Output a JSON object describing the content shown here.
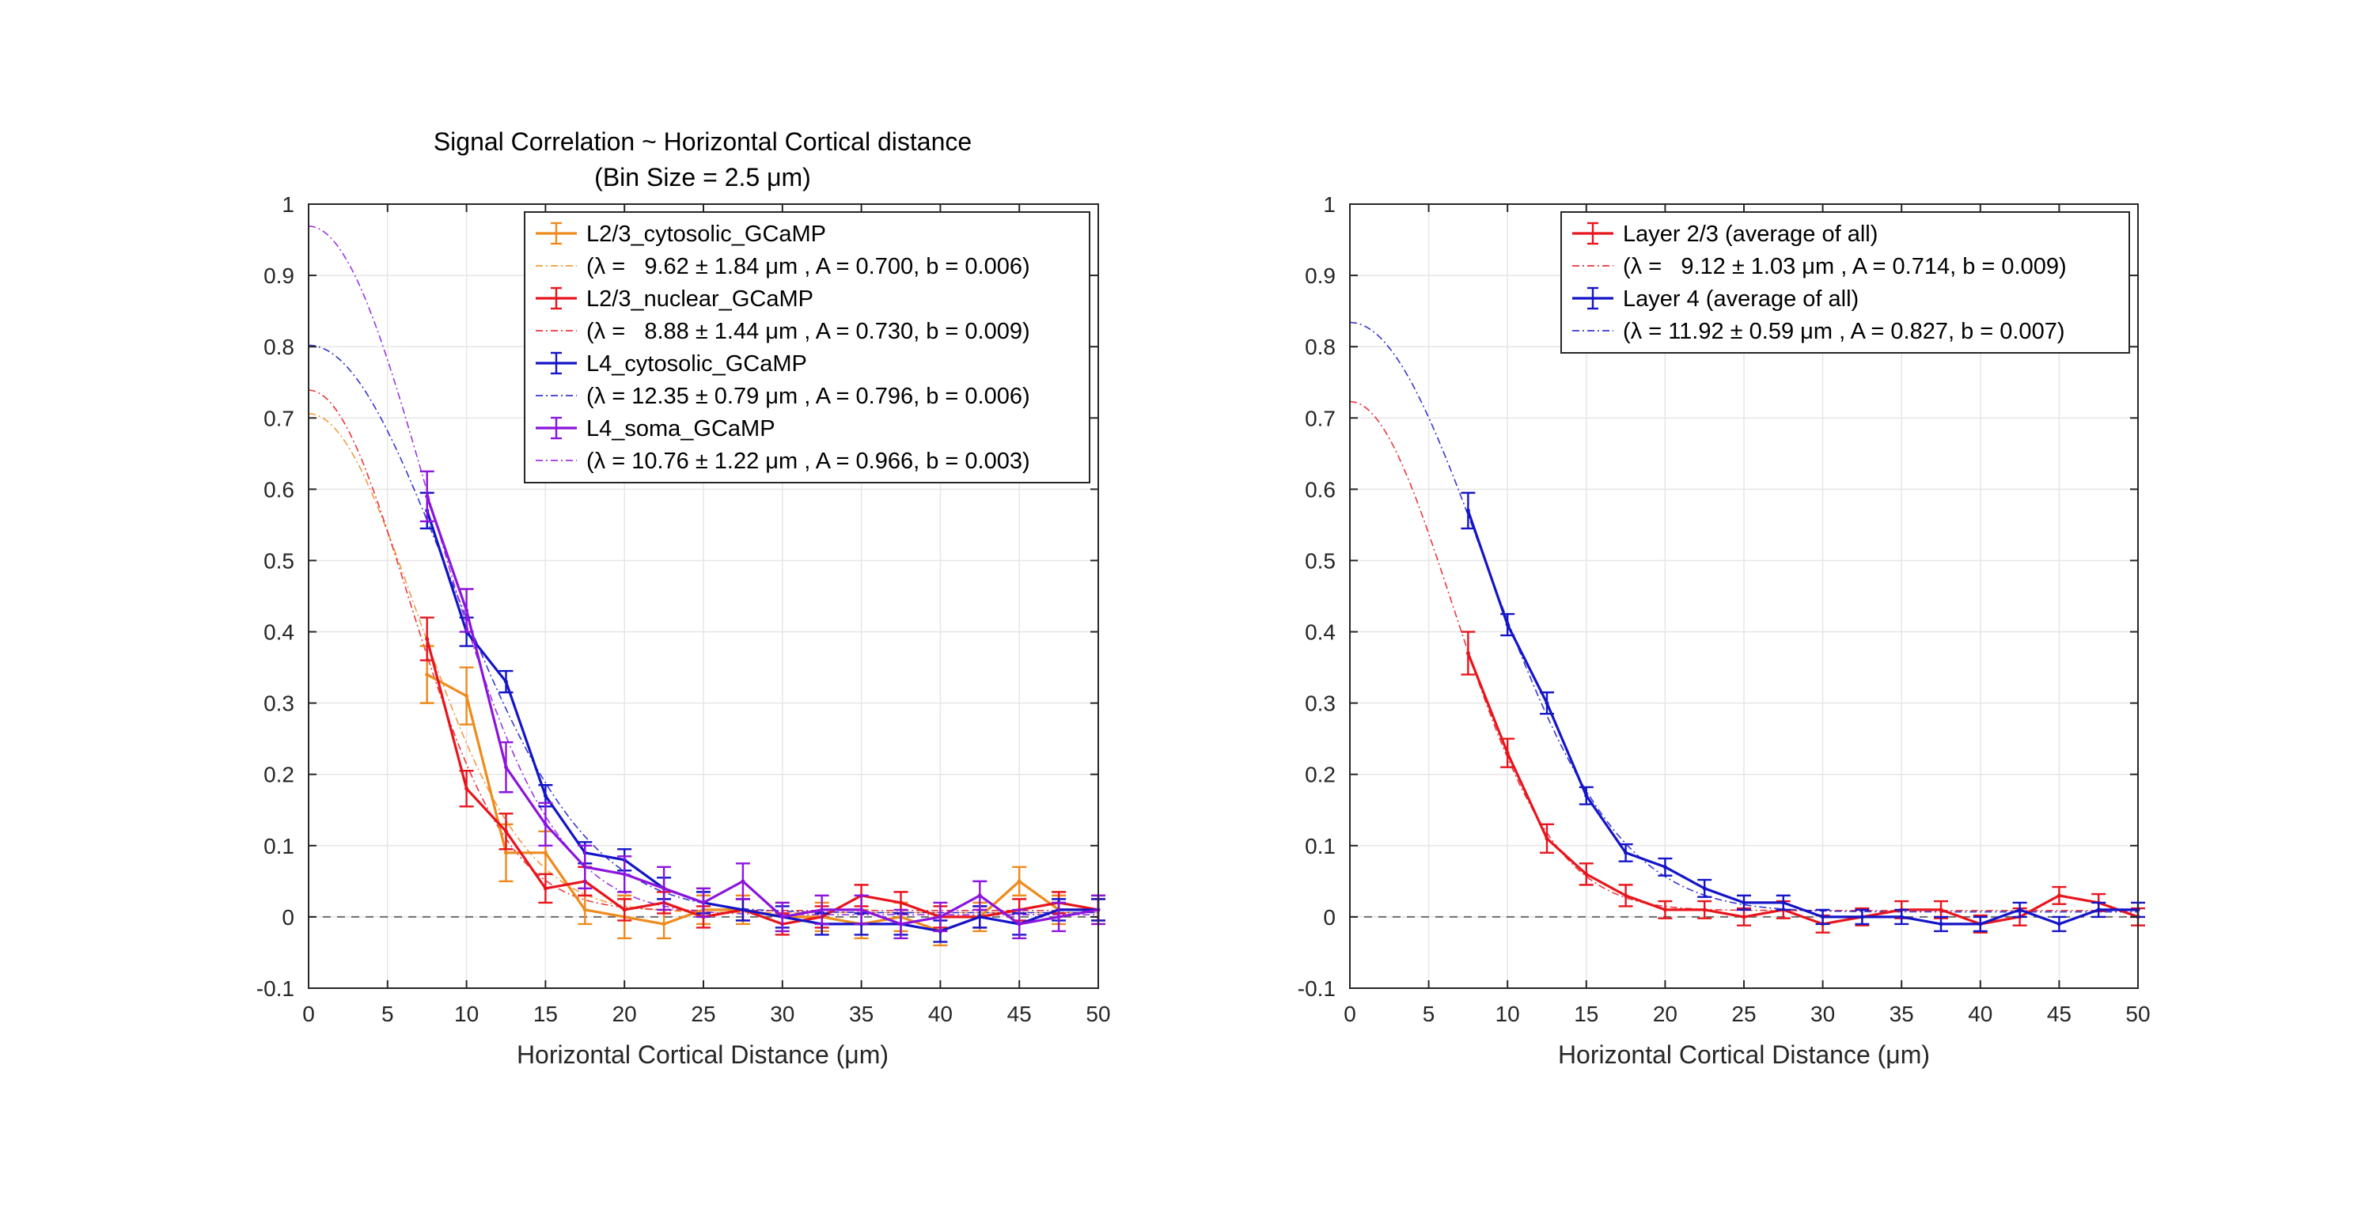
{
  "chart_data": [
    {
      "type": "line",
      "title": "Signal Correlation ~ Horizontal Cortical distance",
      "subtitle": "(Bin Size = 2.5 μm)",
      "xlabel": "Horizontal Cortical Distance (μm)",
      "ylabel": "",
      "xlim": [
        0,
        50
      ],
      "ylim": [
        -0.1,
        1
      ],
      "xticks": [
        "0",
        "5",
        "10",
        "15",
        "20",
        "25",
        "30",
        "35",
        "40",
        "45",
        "50"
      ],
      "yticks": [
        "-0.1",
        "0",
        "0.1",
        "0.2",
        "0.3",
        "0.4",
        "0.5",
        "0.6",
        "0.7",
        "0.8",
        "0.9",
        "1"
      ],
      "grid": true,
      "legend_position": "top-right",
      "x": [
        7.5,
        10,
        12.5,
        15,
        17.5,
        20,
        22.5,
        25,
        27.5,
        30,
        32.5,
        35,
        37.5,
        40,
        42.5,
        45,
        47.5,
        50
      ],
      "series": [
        {
          "name": "L2/3_cytosolic_GCaMP",
          "color": "#ee8a1c",
          "values": [
            0.34,
            0.31,
            0.09,
            0.09,
            0.01,
            0.0,
            -0.01,
            0.01,
            0.01,
            0.0,
            0.0,
            -0.01,
            0.0,
            -0.02,
            0.0,
            0.05,
            0.01,
            0.01
          ],
          "errors": [
            0.04,
            0.04,
            0.04,
            0.03,
            0.02,
            0.03,
            0.02,
            0.02,
            0.02,
            0.02,
            0.02,
            0.02,
            0.02,
            0.02,
            0.02,
            0.02,
            0.02,
            0.02
          ],
          "fit_label": "(λ =   9.62 ± 1.84 μm , A = 0.700, b = 0.006)",
          "fit": {
            "lambda": 9.62,
            "A": 0.7,
            "b": 0.006
          }
        },
        {
          "name": "L2/3_nuclear_GCaMP",
          "color": "#e8141c",
          "values": [
            0.39,
            0.18,
            0.12,
            0.04,
            0.05,
            0.01,
            0.02,
            0.0,
            0.01,
            -0.01,
            0.0,
            0.03,
            0.02,
            0.0,
            0.0,
            0.01,
            0.02,
            0.01
          ],
          "errors": [
            0.03,
            0.025,
            0.025,
            0.02,
            0.02,
            0.015,
            0.015,
            0.015,
            0.015,
            0.015,
            0.015,
            0.015,
            0.015,
            0.015,
            0.015,
            0.015,
            0.015,
            0.015
          ],
          "fit_label": "(λ =   8.88 ± 1.44 μm , A = 0.730, b = 0.009)",
          "fit": {
            "lambda": 8.88,
            "A": 0.73,
            "b": 0.009
          }
        },
        {
          "name": "L4_cytosolic_GCaMP",
          "color": "#1414c8",
          "values": [
            0.57,
            0.4,
            0.33,
            0.17,
            0.09,
            0.08,
            0.04,
            0.02,
            0.01,
            0.0,
            -0.01,
            -0.01,
            -0.01,
            -0.02,
            0.0,
            -0.01,
            0.01,
            0.01
          ],
          "errors": [
            0.025,
            0.02,
            0.015,
            0.015,
            0.015,
            0.015,
            0.015,
            0.015,
            0.015,
            0.015,
            0.015,
            0.015,
            0.015,
            0.015,
            0.015,
            0.015,
            0.015,
            0.015
          ],
          "fit_label": "(λ = 12.35 ± 0.79 μm , A = 0.796, b = 0.006)",
          "fit": {
            "lambda": 12.35,
            "A": 0.796,
            "b": 0.006
          }
        },
        {
          "name": "L4_soma_GCaMP",
          "color": "#8c14dc",
          "values": [
            0.59,
            0.43,
            0.21,
            0.13,
            0.07,
            0.06,
            0.04,
            0.02,
            0.05,
            0.0,
            0.01,
            0.01,
            -0.01,
            0.0,
            0.03,
            -0.01,
            0.0,
            0.01
          ],
          "errors": [
            0.035,
            0.03,
            0.035,
            0.03,
            0.03,
            0.025,
            0.03,
            0.02,
            0.025,
            0.02,
            0.02,
            0.02,
            0.02,
            0.02,
            0.02,
            0.02,
            0.02,
            0.02
          ],
          "fit_label": "(λ = 10.76 ± 1.22 μm , A = 0.966, b = 0.003)",
          "fit": {
            "lambda": 10.76,
            "A": 0.966,
            "b": 0.003
          }
        }
      ]
    },
    {
      "type": "line",
      "title": "",
      "xlabel": "Horizontal Cortical Distance (μm)",
      "ylabel": "",
      "xlim": [
        0,
        50
      ],
      "ylim": [
        -0.1,
        1
      ],
      "xticks": [
        "0",
        "5",
        "10",
        "15",
        "20",
        "25",
        "30",
        "35",
        "40",
        "45",
        "50"
      ],
      "yticks": [
        "-0.1",
        "0",
        "0.1",
        "0.2",
        "0.3",
        "0.4",
        "0.5",
        "0.6",
        "0.7",
        "0.8",
        "0.9",
        "1"
      ],
      "grid": true,
      "legend_position": "top-right",
      "x": [
        7.5,
        10,
        12.5,
        15,
        17.5,
        20,
        22.5,
        25,
        27.5,
        30,
        32.5,
        35,
        37.5,
        40,
        42.5,
        45,
        47.5,
        50
      ],
      "series": [
        {
          "name": "Layer 2/3 (average of all)",
          "color": "#e8141c",
          "values": [
            0.37,
            0.23,
            0.11,
            0.06,
            0.03,
            0.01,
            0.01,
            0.0,
            0.01,
            -0.01,
            0.0,
            0.01,
            0.01,
            -0.01,
            0.0,
            0.03,
            0.02,
            0.0
          ],
          "errors": [
            0.03,
            0.02,
            0.02,
            0.015,
            0.015,
            0.012,
            0.012,
            0.012,
            0.012,
            0.012,
            0.012,
            0.012,
            0.012,
            0.012,
            0.012,
            0.012,
            0.012,
            0.012
          ],
          "fit_label": "(λ =   9.12 ± 1.03 μm , A = 0.714, b = 0.009)",
          "fit": {
            "lambda": 9.12,
            "A": 0.714,
            "b": 0.009
          }
        },
        {
          "name": "Layer 4 (average of all)",
          "color": "#1414c8",
          "values": [
            0.57,
            0.41,
            0.3,
            0.17,
            0.09,
            0.07,
            0.04,
            0.02,
            0.02,
            0.0,
            0.0,
            0.0,
            -0.01,
            -0.01,
            0.01,
            -0.01,
            0.01,
            0.01
          ],
          "errors": [
            0.025,
            0.015,
            0.015,
            0.012,
            0.012,
            0.012,
            0.012,
            0.01,
            0.01,
            0.01,
            0.01,
            0.01,
            0.01,
            0.01,
            0.01,
            0.01,
            0.01,
            0.01
          ],
          "fit_label": "(λ = 11.92 ± 0.59 μm , A = 0.827, b = 0.007)",
          "fit": {
            "lambda": 11.92,
            "A": 0.827,
            "b": 0.007
          }
        }
      ]
    }
  ]
}
